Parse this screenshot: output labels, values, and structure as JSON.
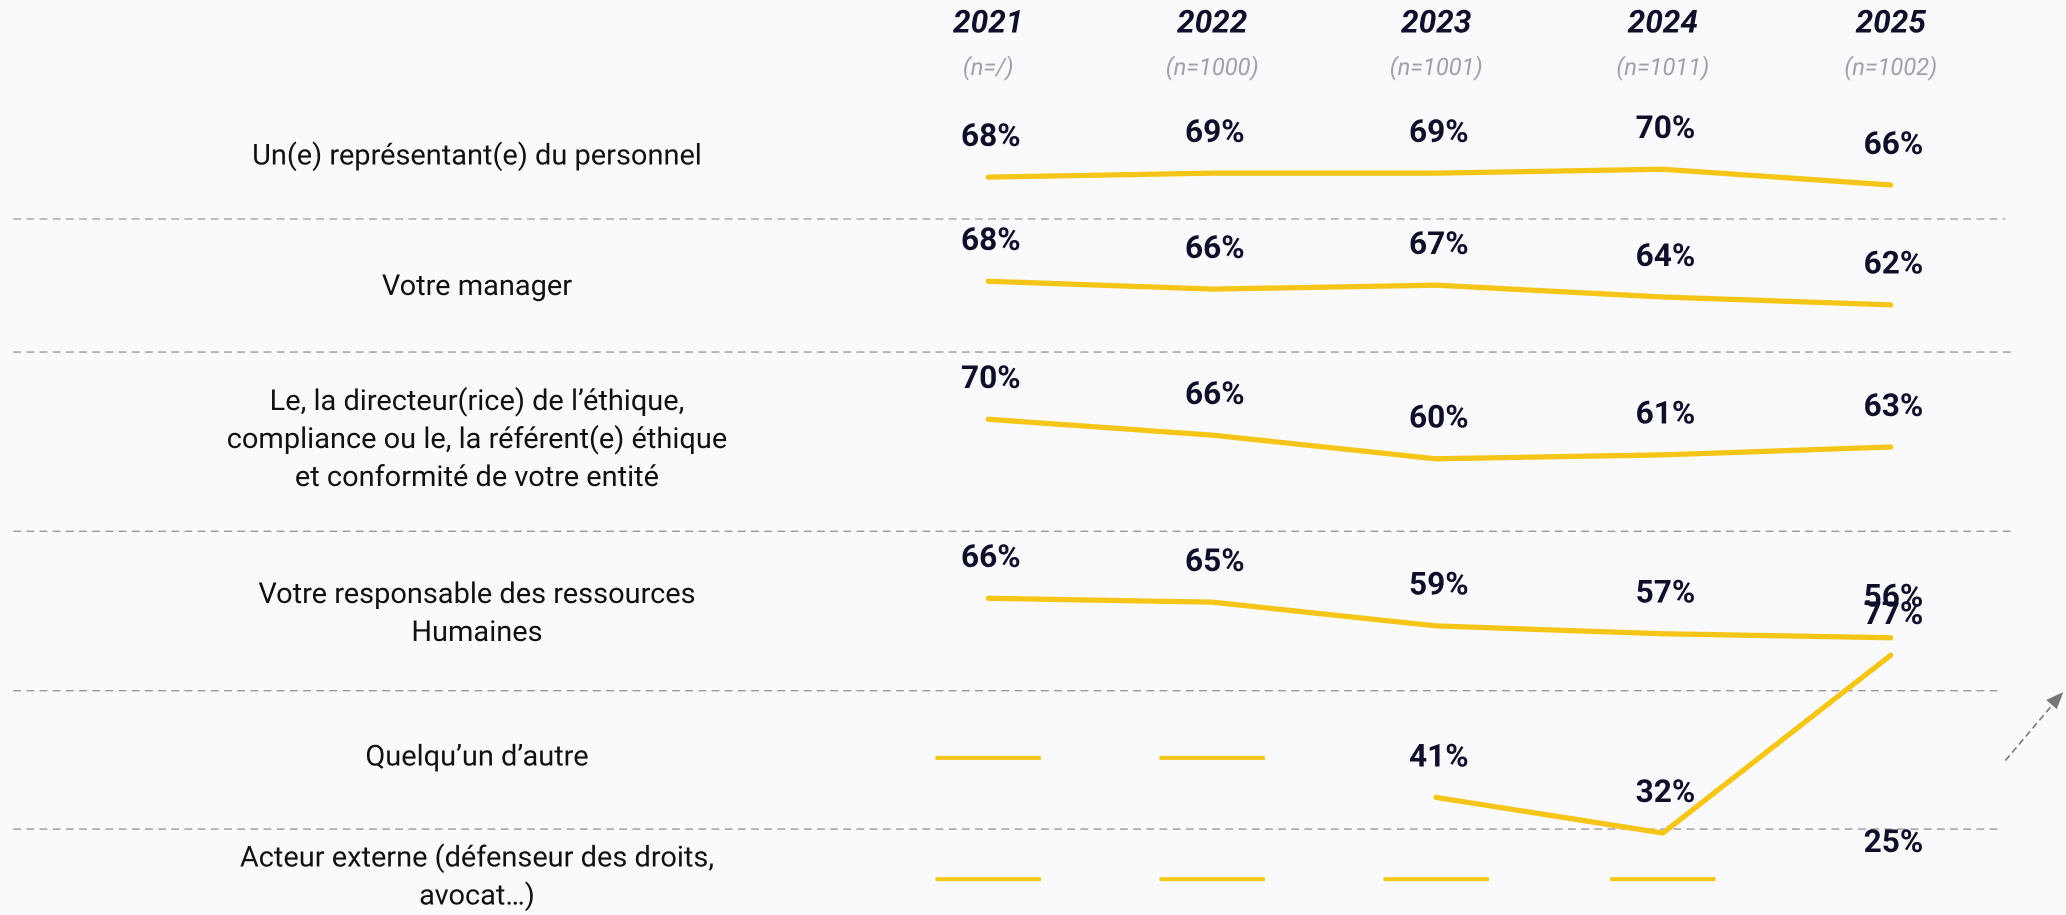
{
  "columns": [
    {
      "year": "2021",
      "sample": "(n=/)"
    },
    {
      "year": "2022",
      "sample": "(n=1000)"
    },
    {
      "year": "2023",
      "sample": "(n=1001)"
    },
    {
      "year": "2024",
      "sample": "(n=1011)"
    },
    {
      "year": "2025",
      "sample": "(n=1002)"
    }
  ],
  "rows": [
    {
      "label": [
        "Un(e) représentant(e) du personnel"
      ],
      "values": [
        68,
        69,
        69,
        70,
        66
      ],
      "value_labels": [
        "68%",
        "69%",
        "69%",
        "70%",
        "66%"
      ]
    },
    {
      "label": [
        "Votre manager"
      ],
      "values": [
        68,
        66,
        67,
        64,
        62
      ],
      "value_labels": [
        "68%",
        "66%",
        "67%",
        "64%",
        "62%"
      ]
    },
    {
      "label": [
        "Le, la directeur(rice) de l’éthique,",
        "compliance ou le, la référent(e) éthique",
        "et conformité de votre entité"
      ],
      "values": [
        70,
        66,
        60,
        61,
        63
      ],
      "value_labels": [
        "70%",
        "66%",
        "60%",
        "61%",
        "63%"
      ]
    },
    {
      "label": [
        "Votre responsable des ressources",
        "Humaines"
      ],
      "values": [
        66,
        65,
        59,
        57,
        56
      ],
      "value_labels": [
        "66%",
        "65%",
        "59%",
        "57%",
        "56%"
      ]
    },
    {
      "label": [
        "Quelqu’un d’autre"
      ],
      "values": [
        null,
        null,
        41,
        32,
        77
      ],
      "value_labels": [
        null,
        null,
        "41%",
        "32%",
        "77%"
      ]
    },
    {
      "label": [
        "Acteur externe (défenseur des droits,",
        "avocat…)"
      ],
      "values": [
        null,
        null,
        null,
        null,
        25
      ],
      "value_labels": [
        null,
        null,
        null,
        null,
        "25%"
      ]
    }
  ]
}
